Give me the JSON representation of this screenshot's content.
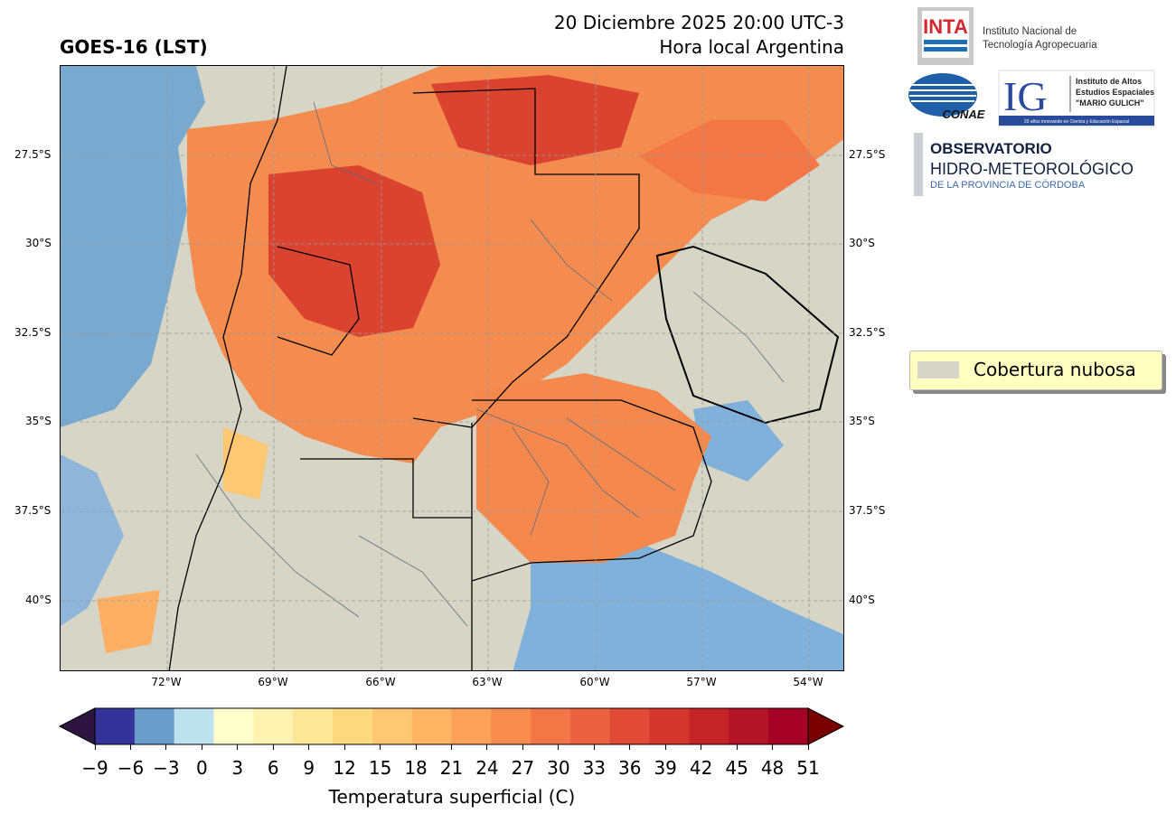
{
  "header": {
    "title": "GOES-16 (LST)",
    "date_line": "20 Diciembre 2025 20:00 UTC-3",
    "local_line": "Hora local Argentina"
  },
  "map": {
    "lat_ticks": [
      "27.5°S",
      "30°S",
      "32.5°S",
      "35°S",
      "37.5°S",
      "40°S"
    ],
    "lon_ticks": [
      "72°W",
      "69°W",
      "66°W",
      "63°W",
      "60°W",
      "57°W",
      "54°W"
    ],
    "cloud_color": "#d6d5c6"
  },
  "legend": {
    "label": "Cobertura nubosa",
    "swatch_color": "#d6d5c6"
  },
  "colorbar": {
    "label": "Temperatura superficial (C)",
    "ticks": [
      "−9",
      "−6",
      "−3",
      "0",
      "3",
      "6",
      "9",
      "12",
      "15",
      "18",
      "21",
      "24",
      "27",
      "30",
      "33",
      "36",
      "39",
      "42",
      "45",
      "48",
      "51"
    ],
    "under_color": "#2d1540",
    "over_color": "#7a0000",
    "colors": [
      "#333399",
      "#6a9ccb",
      "#bfe2ef",
      "#ffffcc",
      "#fff2b0",
      "#fee797",
      "#fed980",
      "#fec772",
      "#feb462",
      "#fda058",
      "#f88b4e",
      "#f37647",
      "#ea6040",
      "#e04a36",
      "#d4352d",
      "#c52427",
      "#b31426",
      "#a50026"
    ]
  },
  "logos": {
    "inta_mark": "INTA",
    "inta_line1": "Instituto Nacional de",
    "inta_line2": "Tecnología Agropecuaria",
    "conae": "CONAE",
    "ig_mark": "IG",
    "ig_line1": "Instituto de Altos",
    "ig_line2": "Estudios Espaciales",
    "ig_line3": "\"MARIO GULICH\"",
    "ig_slogan": "20 años innovando en Ciencia y Educación Espacial",
    "obs_line1": "OBSERVATORIO",
    "obs_line2": "HIDRO-METEOROLÓGICO",
    "obs_line3": "DE LA PROVINCIA DE CÓRDOBA"
  }
}
